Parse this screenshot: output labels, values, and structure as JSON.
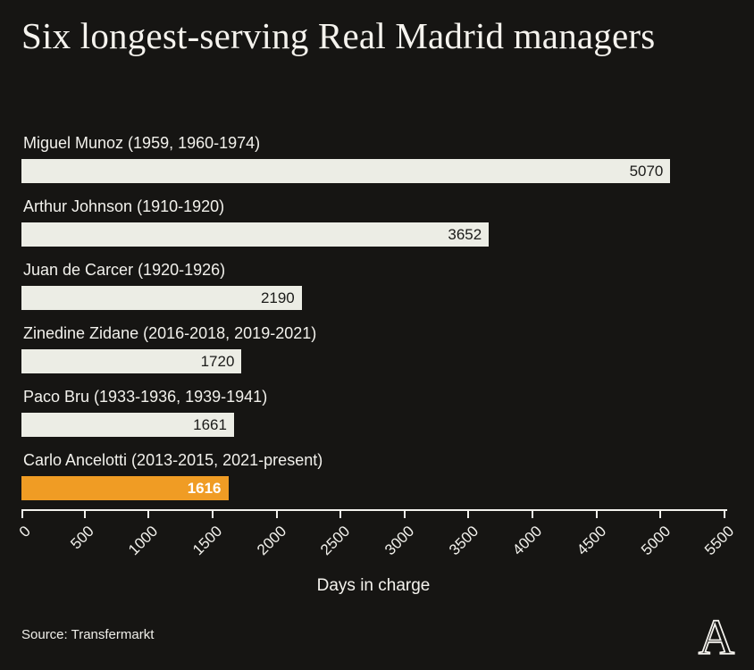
{
  "title": "Six longest-serving Real Madrid managers",
  "source": "Source: Transfermarkt",
  "logo_letter": "A",
  "colors": {
    "background": "#161513",
    "text": "#f5f3ee",
    "bar": "#ECEDE5",
    "highlight": "#F09C24",
    "value_text": "#1b1b19",
    "highlight_value_text": "#ffffff"
  },
  "chart_data": {
    "type": "bar",
    "orientation": "horizontal",
    "title": "Six longest-serving Real Madrid managers",
    "categories": [
      "Miguel Munoz (1959, 1960-1974)",
      "Arthur Johnson (1910-1920)",
      "Juan de Carcer (1920-1926)",
      "Zinedine Zidane (2016-2018, 2019-2021)",
      "Paco Bru (1933-1936, 1939-1941)",
      "Carlo Ancelotti (2013-2015, 2021-present)"
    ],
    "values": [
      5070,
      3652,
      2190,
      1720,
      1661,
      1616
    ],
    "highlight_index": 5,
    "xlabel": "Days in charge",
    "ylabel": "",
    "xlim": [
      0,
      5500
    ],
    "xticks": [
      0,
      500,
      1000,
      1500,
      2000,
      2500,
      3000,
      3500,
      4000,
      4500,
      5000,
      5500
    ],
    "grid": false,
    "legend": false,
    "value_labels": "inside-end"
  }
}
